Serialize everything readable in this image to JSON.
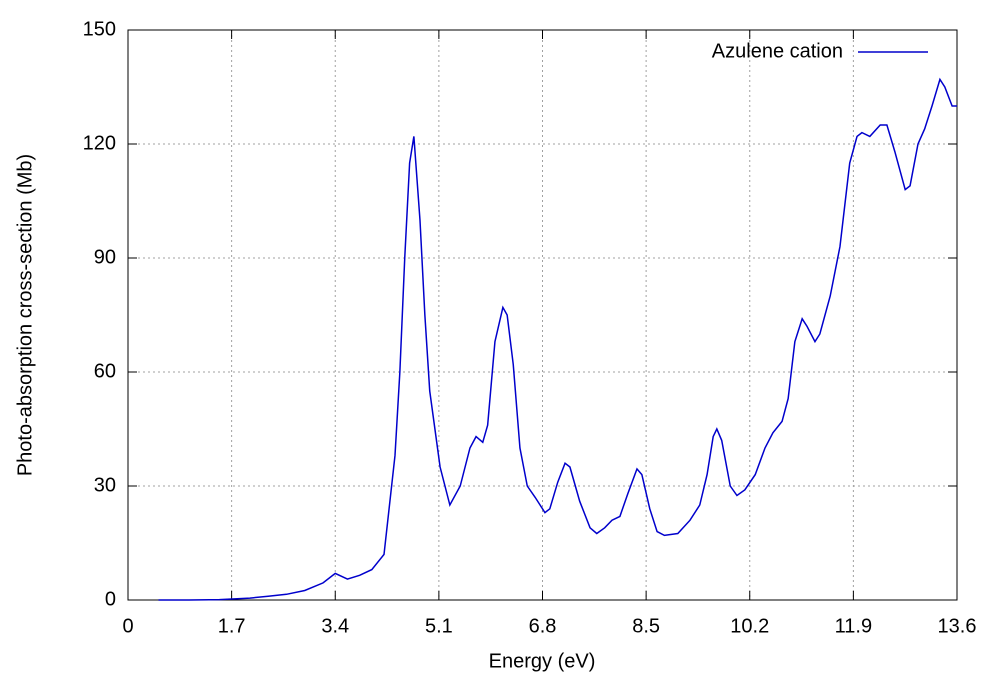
{
  "chart_data": {
    "type": "line",
    "x_label": "Energy (eV)",
    "y_label": "Photo-absorption cross-section (Mb)",
    "xlim": [
      0,
      13.6
    ],
    "ylim": [
      0,
      150
    ],
    "xticks": [
      0,
      1.7,
      3.4,
      5.1,
      6.8,
      8.5,
      10.2,
      11.9,
      13.6
    ],
    "yticks": [
      0,
      30,
      60,
      90,
      120,
      150
    ],
    "grid": true,
    "legend": "top-right",
    "series": [
      {
        "name": "Azulene cation",
        "color": "#0000cc",
        "x": [
          0.5,
          1.0,
          1.5,
          2.0,
          2.3,
          2.6,
          2.9,
          3.2,
          3.4,
          3.6,
          3.8,
          4.0,
          4.2,
          4.38,
          4.46,
          4.54,
          4.62,
          4.69,
          4.79,
          4.87,
          4.95,
          5.12,
          5.28,
          5.45,
          5.61,
          5.71,
          5.82,
          5.9,
          6.02,
          6.15,
          6.22,
          6.32,
          6.43,
          6.55,
          6.68,
          6.84,
          6.92,
          7.05,
          7.17,
          7.25,
          7.41,
          7.58,
          7.69,
          7.82,
          7.94,
          8.07,
          8.2,
          8.35,
          8.43,
          8.56,
          8.68,
          8.8,
          9.02,
          9.22,
          9.38,
          9.5,
          9.6,
          9.66,
          9.74,
          9.88,
          9.99,
          10.12,
          10.29,
          10.45,
          10.58,
          10.73,
          10.83,
          10.94,
          11.06,
          11.14,
          11.27,
          11.35,
          11.52,
          11.68,
          11.84,
          11.96,
          12.04,
          12.17,
          12.34,
          12.45,
          12.58,
          12.75,
          12.83,
          12.96,
          13.07,
          13.19,
          13.32,
          13.4,
          13.52,
          13.6
        ],
        "values": [
          0,
          0,
          0.1,
          0.5,
          1,
          1.5,
          2.5,
          4.5,
          7,
          5.5,
          6.5,
          8,
          12,
          38,
          60,
          90,
          115,
          122,
          100,
          75,
          55,
          35,
          25,
          30,
          40,
          43,
          41.5,
          46,
          68,
          77,
          75,
          62,
          40,
          30,
          27,
          23,
          24,
          31,
          36,
          35,
          26,
          19,
          17.5,
          19,
          21,
          22,
          28,
          34.5,
          33,
          24,
          18,
          17,
          17.5,
          21,
          25,
          33,
          43,
          45,
          42,
          30,
          27.5,
          29,
          33,
          40,
          44,
          47,
          53,
          68,
          74,
          72,
          68,
          70,
          80,
          93,
          115,
          122,
          123,
          122,
          125,
          125,
          118,
          108,
          109,
          120,
          124,
          130,
          137,
          135,
          130,
          130
        ]
      }
    ]
  }
}
